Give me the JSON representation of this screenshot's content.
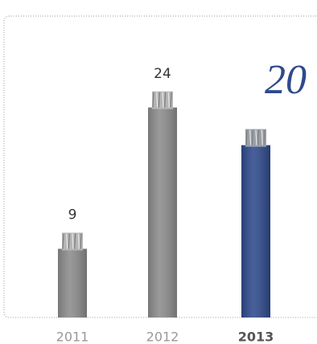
{
  "chart_data": {
    "type": "bar",
    "categories": [
      "2011",
      "2012",
      "2013"
    ],
    "values": [
      9,
      24,
      20
    ],
    "colors": [
      "#8c8c8c",
      "#8c8c8c",
      "#2f4a8c"
    ],
    "highlight_color": "#2f4a8c",
    "ylim": [
      0,
      32
    ]
  }
}
